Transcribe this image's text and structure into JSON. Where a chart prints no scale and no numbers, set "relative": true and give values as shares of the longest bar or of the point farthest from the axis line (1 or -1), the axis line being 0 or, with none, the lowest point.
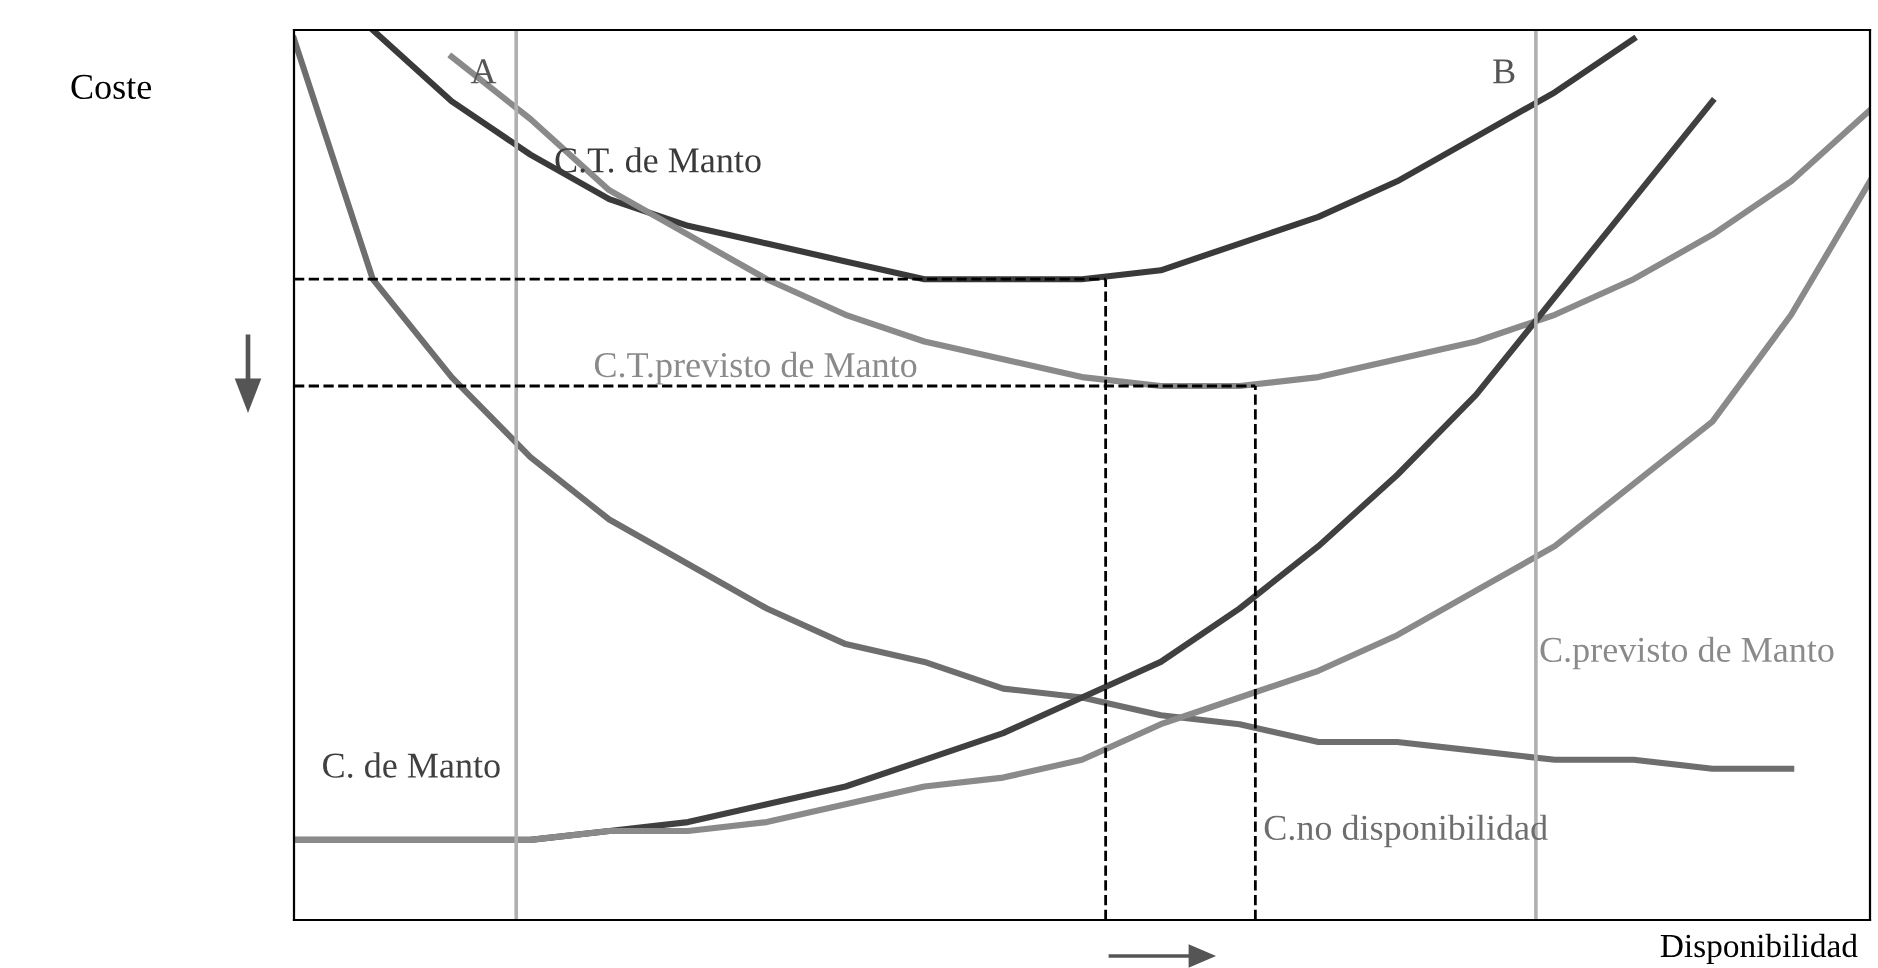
{
  "chart_data": {
    "type": "line",
    "relative": true,
    "ylabel": "Coste",
    "xlabel": "Disponibilidad",
    "grid": false,
    "annotations": [
      "A",
      "B"
    ],
    "marker": "none",
    "line_style": "solid",
    "categories": [
      null,
      null,
      null,
      null,
      null,
      null,
      null,
      null,
      null,
      null,
      null,
      null,
      null,
      null,
      null,
      null,
      null,
      null,
      null,
      null,
      null
    ],
    "series": [
      {
        "name": "C.T. de Manto",
        "color": "#3a3a3a",
        "values": [
          null,
          1.0,
          0.92,
          0.86,
          0.81,
          0.78,
          0.76,
          0.74,
          0.72,
          0.72,
          0.72,
          0.73,
          0.76,
          0.79,
          0.83,
          0.88,
          0.93,
          0.99,
          null,
          null,
          null
        ]
      },
      {
        "name": "C.T.previsto de Manto",
        "color": "#8a8a8a",
        "values": [
          null,
          null,
          0.97,
          0.9,
          0.82,
          0.77,
          0.72,
          0.68,
          0.65,
          0.63,
          0.61,
          0.6,
          0.6,
          0.61,
          0.63,
          0.65,
          0.68,
          0.72,
          0.77,
          0.83,
          0.91
        ]
      },
      {
        "name": "C.no disponibilidad",
        "color": "#6e6e6e",
        "values": [
          0.99,
          0.72,
          0.61,
          0.52,
          0.45,
          0.4,
          0.35,
          0.31,
          0.29,
          0.26,
          0.25,
          0.23,
          0.22,
          0.2,
          0.2,
          0.19,
          0.18,
          0.18,
          0.17,
          0.17,
          null
        ]
      },
      {
        "name": "C. de Manto",
        "color": "#404040",
        "values": [
          0.09,
          0.09,
          0.09,
          0.09,
          0.1,
          0.11,
          0.13,
          0.15,
          0.18,
          0.21,
          0.25,
          0.29,
          0.35,
          0.42,
          0.5,
          0.59,
          0.7,
          0.81,
          0.92,
          null,
          null
        ]
      },
      {
        "name": "C.previsto de Manto",
        "color": "#8a8a8a",
        "values": [
          0.09,
          0.09,
          0.09,
          0.09,
          0.1,
          0.1,
          0.11,
          0.13,
          0.15,
          0.16,
          0.18,
          0.22,
          0.25,
          0.28,
          0.32,
          0.37,
          0.42,
          0.49,
          0.56,
          0.68,
          0.83
        ]
      }
    ],
    "ref_lines": [
      {
        "axis": "y",
        "value": 0.72,
        "color": "#000000",
        "line_style": "dashed"
      },
      {
        "axis": "y",
        "value": 0.6,
        "color": "#000000",
        "line_style": "dashed"
      }
    ]
  }
}
